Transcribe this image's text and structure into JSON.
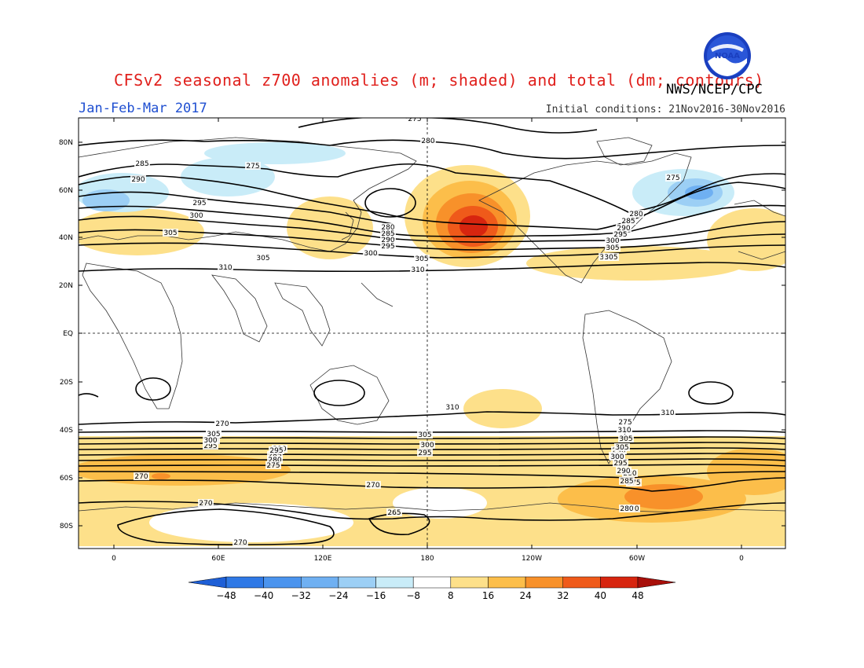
{
  "title": "CFSv2 seasonal z700 anomalies (m; shaded) and total (dm; contours)",
  "agency": "NWS/NCEP/CPC",
  "period": "Jan-Feb-Mar 2017",
  "initial_conditions": "Initial conditions: 21Nov2016-30Nov2016",
  "logo_text": "NOAA",
  "map": {
    "lat_labels": [
      "80N",
      "60N",
      "40N",
      "20N",
      "EQ",
      "20S",
      "40S",
      "60S",
      "80S"
    ],
    "lon_labels": [
      "0",
      "60E",
      "120E",
      "180",
      "120W",
      "60W",
      "0"
    ],
    "contour_labels": [
      "275",
      "280",
      "275",
      "285",
      "290",
      "295",
      "300",
      "305",
      "310",
      "280",
      "285",
      "290",
      "295",
      "300",
      "305",
      "305",
      "310",
      "275",
      "280",
      "285",
      "290",
      "295",
      "300",
      "305",
      "310",
      "305",
      "310",
      "310",
      "310",
      "305",
      "300",
      "295",
      "290",
      "285",
      "280",
      "275",
      "270",
      "270",
      "270",
      "265",
      "270",
      "305",
      "300",
      "295",
      "290",
      "285",
      "280",
      "275",
      "270",
      "270",
      "305",
      "300",
      "295",
      "310",
      "305",
      "305",
      "300",
      "295",
      "290",
      "285",
      "280",
      "275",
      "270",
      "310"
    ]
  },
  "colorbar": {
    "ticks": [
      "-48",
      "-40",
      "-32",
      "-24",
      "-16",
      "-8",
      "8",
      "16",
      "24",
      "32",
      "40",
      "48"
    ],
    "colors": [
      "#1e5fd6",
      "#2f79e6",
      "#4b94ee",
      "#6fb0f2",
      "#9ccff5",
      "#c9ecf8",
      "#ffffff",
      "#fde08a",
      "#fcbe4a",
      "#f8912a",
      "#ef5a1a",
      "#d7250f",
      "#a80f0a"
    ]
  }
}
